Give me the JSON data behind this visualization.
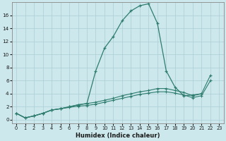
{
  "xlabel": "Humidex (Indice chaleur)",
  "background_color": "#cce8ec",
  "grid_color": "#aacdd4",
  "line_color": "#2e7d6e",
  "xlim": [
    -0.5,
    23.5
  ],
  "ylim": [
    -0.5,
    18
  ],
  "yticks": [
    0,
    2,
    4,
    6,
    8,
    10,
    12,
    14,
    16
  ],
  "xticks": [
    0,
    1,
    2,
    3,
    4,
    5,
    6,
    7,
    8,
    9,
    10,
    11,
    12,
    13,
    14,
    15,
    16,
    17,
    18,
    19,
    20,
    21,
    22,
    23
  ],
  "main_x": [
    0,
    1,
    2,
    3,
    4,
    5,
    6,
    7,
    8,
    9,
    10,
    11,
    12,
    13,
    14,
    15,
    16,
    17,
    18,
    19,
    20,
    21
  ],
  "main_y": [
    1.0,
    0.3,
    0.6,
    1.0,
    1.5,
    1.7,
    2.0,
    2.3,
    2.5,
    7.5,
    11.0,
    12.8,
    15.2,
    16.7,
    17.5,
    17.8,
    14.8,
    7.5,
    5.0,
    3.7,
    3.8,
    4.0
  ],
  "line2_x": [
    0,
    1,
    2,
    3,
    4,
    5,
    6,
    7,
    8,
    9,
    10,
    11,
    12,
    13,
    14,
    15,
    16,
    17,
    18,
    19,
    20,
    21,
    22
  ],
  "line2_y": [
    1.0,
    0.3,
    0.6,
    1.0,
    1.5,
    1.7,
    2.0,
    2.3,
    2.5,
    2.7,
    3.0,
    3.3,
    3.7,
    4.0,
    4.3,
    4.5,
    4.8,
    4.8,
    4.5,
    4.2,
    3.7,
    4.0,
    6.8
  ],
  "line3_x": [
    0,
    1,
    2,
    3,
    4,
    5,
    6,
    7,
    8,
    9,
    10,
    11,
    12,
    13,
    14,
    15,
    16,
    17,
    18,
    19,
    20,
    21,
    22
  ],
  "line3_y": [
    1.0,
    0.3,
    0.6,
    1.0,
    1.5,
    1.7,
    1.9,
    2.1,
    2.2,
    2.4,
    2.7,
    3.0,
    3.3,
    3.6,
    3.9,
    4.1,
    4.3,
    4.3,
    4.1,
    3.8,
    3.4,
    3.7,
    6.0
  ]
}
